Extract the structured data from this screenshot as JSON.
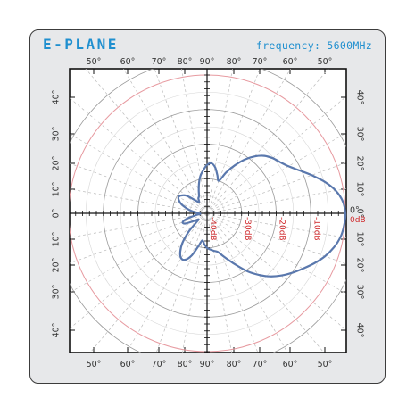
{
  "header": {
    "title": "E-PLANE",
    "frequency": "frequency: 5600MHz"
  },
  "colors": {
    "title": "#1f8fcf",
    "pattern": "#5a78ad",
    "db_ring_text": "#d0282b",
    "zero_db_ring": "#e79aa0",
    "card_bg": "#e7e8ea"
  },
  "chart_data": {
    "type": "polar",
    "top_ticks": [
      "50°",
      "60°",
      "70°",
      "80°",
      "90°",
      "80°",
      "70°",
      "60°",
      "50°"
    ],
    "bottom_ticks": [
      "50°",
      "60°",
      "70°",
      "80°",
      "90°",
      "80°",
      "70°",
      "60°",
      "50°"
    ],
    "left_ticks": [
      "40°",
      "30°",
      "20°",
      "10°",
      "0°",
      "10°",
      "20°",
      "30°",
      "40°"
    ],
    "right_ticks": [
      "40°",
      "30°",
      "20°",
      "10°",
      "0°",
      "10°",
      "20°",
      "30°",
      "40°"
    ],
    "db_rings": [
      {
        "label": "-40dB",
        "db": -40
      },
      {
        "label": "-30dB",
        "db": -30
      },
      {
        "label": "-20dB",
        "db": -20
      },
      {
        "label": "-10dB",
        "db": -10
      },
      {
        "label": "0dB",
        "db": 0
      }
    ],
    "r_range_db": [
      -40,
      0
    ],
    "grid": true,
    "pattern_series": {
      "angle_deg": [
        0,
        5,
        10,
        15,
        20,
        25,
        30,
        35,
        40,
        45,
        50,
        55,
        60,
        65,
        70,
        75,
        80,
        85,
        90,
        95,
        100,
        105,
        110,
        115,
        120,
        125,
        130,
        135,
        140,
        145,
        150,
        155,
        160,
        165,
        170,
        175,
        180,
        185,
        190,
        195,
        200,
        205,
        210,
        215,
        220,
        225,
        230,
        235,
        240,
        245,
        250,
        255,
        260,
        265,
        270,
        275,
        280,
        285,
        290,
        295,
        300,
        305,
        310,
        315,
        320,
        325,
        330,
        335,
        340,
        345,
        350,
        355
      ],
      "gain_db": [
        0,
        -0.6,
        -2.2,
        -4.8,
        -7.8,
        -10.6,
        -12.8,
        -14.2,
        -15.2,
        -16.5,
        -18.5,
        -21,
        -24,
        -27,
        -30,
        -28.5,
        -26.5,
        -25.5,
        -26,
        -27.5,
        -29,
        -31,
        -33,
        -34.5,
        -35,
        -36,
        -35.5,
        -34,
        -32,
        -31,
        -30.5,
        -31,
        -32,
        -33.5,
        -35,
        -36.5,
        -37.5,
        -38,
        -36.5,
        -34,
        -32.5,
        -33,
        -35.5,
        -37,
        -36,
        -32.5,
        -29,
        -26.5,
        -25,
        -25.2,
        -27,
        -30,
        -32,
        -31,
        -30,
        -29.5,
        -29,
        -28.5,
        -27,
        -25,
        -22.5,
        -19.5,
        -16.8,
        -14.2,
        -12,
        -10,
        -8,
        -5.8,
        -3.7,
        -2,
        -0.8,
        -0.2
      ]
    }
  }
}
